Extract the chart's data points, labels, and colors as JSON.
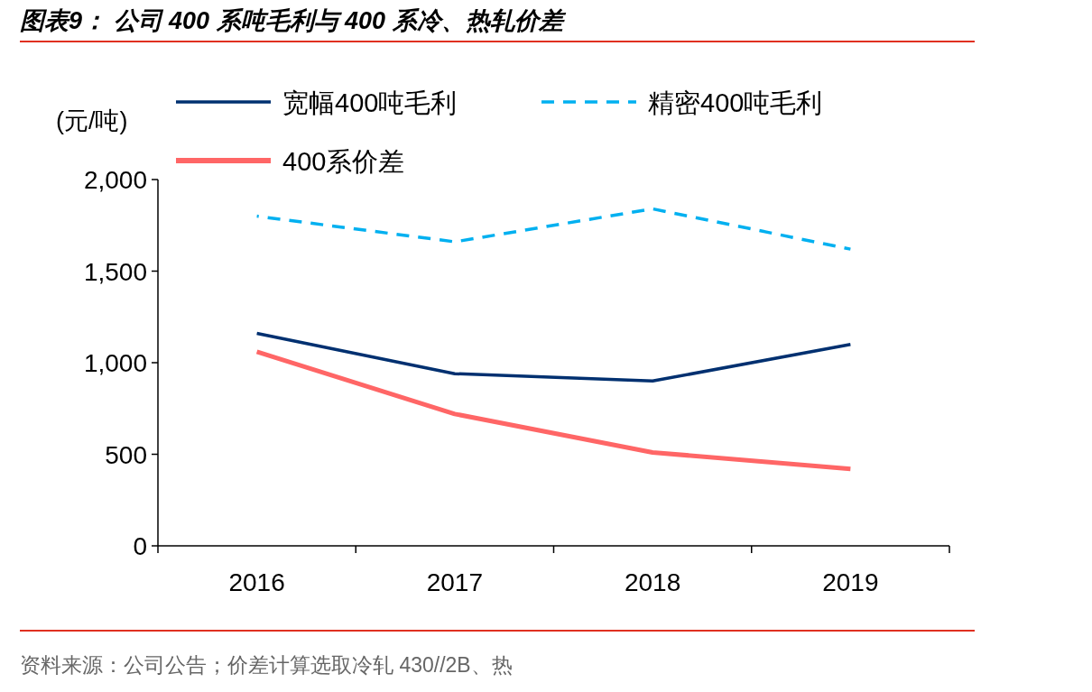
{
  "chart_data": {
    "type": "line",
    "title": "图表9：  公司 400 系吨毛利与 400 系冷、热轧价差",
    "ylabel": "(元/吨)",
    "categories": [
      "2016",
      "2017",
      "2018",
      "2019"
    ],
    "series": [
      {
        "name": "宽幅400吨毛利",
        "color": "#003070",
        "values": [
          1160,
          940,
          900,
          1100
        ],
        "line_style": "solid"
      },
      {
        "name": "精密400吨毛利",
        "color": "#00b0f0",
        "values": [
          1800,
          1660,
          1840,
          1620
        ],
        "line_style": "dashed"
      },
      {
        "name": "400系价差",
        "color": "#ff6666",
        "values": [
          1060,
          720,
          510,
          420
        ],
        "line_style": "solid"
      }
    ],
    "ylim": [
      0,
      2000
    ],
    "yticks": [
      0,
      500,
      {
        "value": 1000,
        "label": "1,000"
      },
      {
        "value": 1500,
        "label": "1,500"
      },
      {
        "value": 2000,
        "label": "2,000"
      }
    ],
    "legend": "top",
    "annotations": [
      "资料来源：公司公告；价差计算选取冷轧 430//2B、热"
    ]
  }
}
